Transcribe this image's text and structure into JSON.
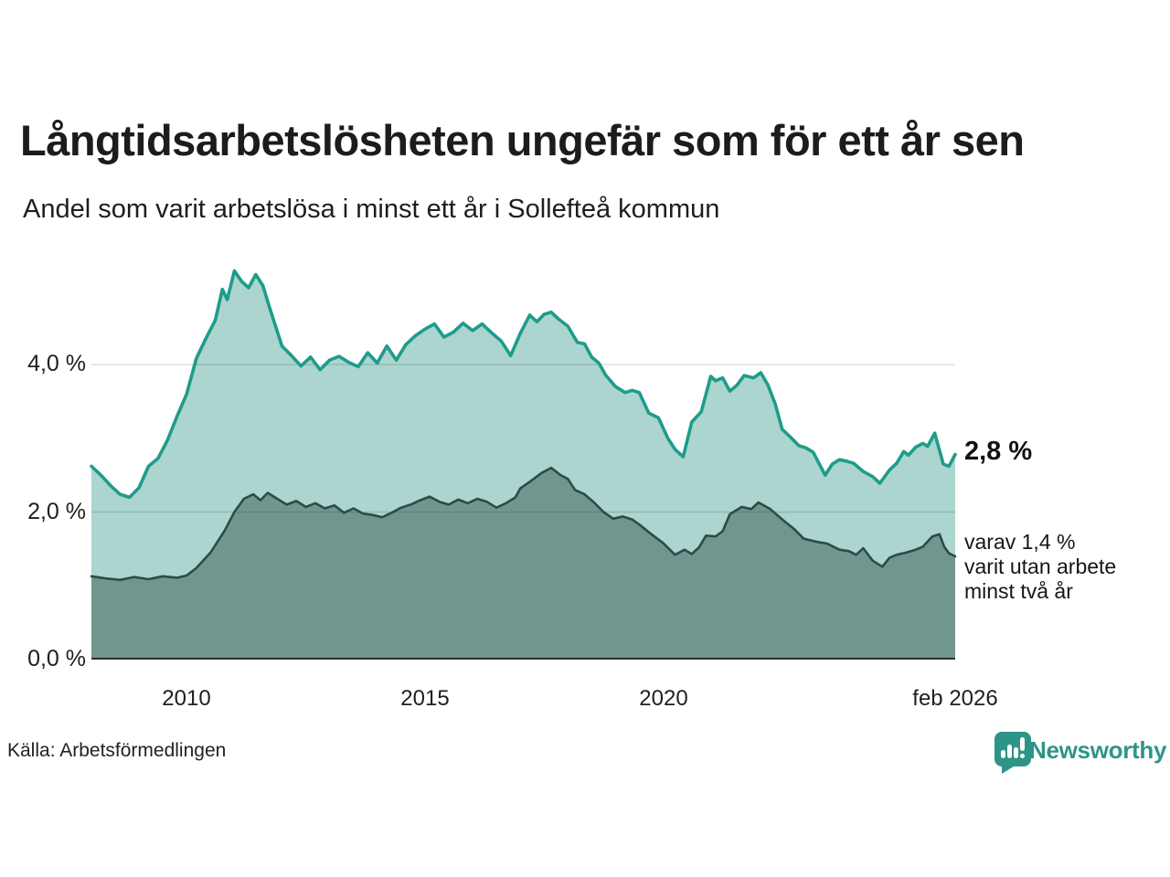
{
  "title": "Långtidsarbetslösheten ungefär som för ett år sen",
  "subtitle": "Andel som varit arbetslösa i minst ett år i Sollefteå kommun",
  "source": "Källa: Arbetsförmedlingen",
  "branding": {
    "name": "Newsworthy",
    "color": "#2e9488"
  },
  "annotations": {
    "latest_total": "2,8 %",
    "subset_note": "varav 1,4 %\nvarit utan arbete\nminst två år"
  },
  "chart_data": {
    "type": "area",
    "title": "Långtidsarbetslösheten ungefär som för ett år sen",
    "xlabel": "",
    "ylabel": "",
    "grid": true,
    "x_domain": [
      2008.0,
      2026.13
    ],
    "y_domain": [
      0,
      5.474
    ],
    "y_axis": {
      "tick_values": [
        4,
        2,
        0
      ],
      "tick_labels": [
        "4,0 %",
        "2,0 %",
        "0,0 %"
      ],
      "grid_values": [
        4,
        2
      ]
    },
    "x_axis": {
      "tick_values": [
        2010,
        2015,
        2020,
        2026.13
      ],
      "tick_labels": [
        "2010",
        "2015",
        "2020",
        "feb 2026"
      ]
    },
    "series": [
      {
        "name": "Arbetslösa minst ett år",
        "end_label": "2,8 %",
        "end_value": 2.8,
        "stroke": "#1e9c8b",
        "fill": "#abd5ce",
        "stroke_width": 3.6,
        "points": [
          [
            2008.0,
            2.62
          ],
          [
            2008.2,
            2.5
          ],
          [
            2008.4,
            2.36
          ],
          [
            2008.6,
            2.24
          ],
          [
            2008.8,
            2.2
          ],
          [
            2009.0,
            2.33
          ],
          [
            2009.2,
            2.62
          ],
          [
            2009.4,
            2.73
          ],
          [
            2009.6,
            2.98
          ],
          [
            2009.8,
            3.3
          ],
          [
            2010.0,
            3.6
          ],
          [
            2010.2,
            4.08
          ],
          [
            2010.4,
            4.35
          ],
          [
            2010.6,
            4.6
          ],
          [
            2010.75,
            5.02
          ],
          [
            2010.85,
            4.88
          ],
          [
            2011.0,
            5.27
          ],
          [
            2011.15,
            5.13
          ],
          [
            2011.3,
            5.04
          ],
          [
            2011.45,
            5.22
          ],
          [
            2011.6,
            5.07
          ],
          [
            2011.75,
            4.75
          ],
          [
            2011.9,
            4.45
          ],
          [
            2012.0,
            4.25
          ],
          [
            2012.2,
            4.12
          ],
          [
            2012.4,
            3.98
          ],
          [
            2012.6,
            4.1
          ],
          [
            2012.8,
            3.93
          ],
          [
            2013.0,
            4.06
          ],
          [
            2013.2,
            4.11
          ],
          [
            2013.4,
            4.03
          ],
          [
            2013.6,
            3.97
          ],
          [
            2013.8,
            4.16
          ],
          [
            2014.0,
            4.02
          ],
          [
            2014.2,
            4.25
          ],
          [
            2014.4,
            4.06
          ],
          [
            2014.6,
            4.27
          ],
          [
            2014.8,
            4.39
          ],
          [
            2015.0,
            4.48
          ],
          [
            2015.2,
            4.55
          ],
          [
            2015.4,
            4.37
          ],
          [
            2015.6,
            4.44
          ],
          [
            2015.8,
            4.56
          ],
          [
            2016.0,
            4.46
          ],
          [
            2016.2,
            4.55
          ],
          [
            2016.4,
            4.43
          ],
          [
            2016.6,
            4.32
          ],
          [
            2016.8,
            4.12
          ],
          [
            2017.0,
            4.42
          ],
          [
            2017.2,
            4.67
          ],
          [
            2017.35,
            4.58
          ],
          [
            2017.5,
            4.68
          ],
          [
            2017.65,
            4.71
          ],
          [
            2017.8,
            4.62
          ],
          [
            2018.0,
            4.52
          ],
          [
            2018.2,
            4.3
          ],
          [
            2018.35,
            4.28
          ],
          [
            2018.5,
            4.1
          ],
          [
            2018.65,
            4.02
          ],
          [
            2018.8,
            3.85
          ],
          [
            2019.0,
            3.7
          ],
          [
            2019.2,
            3.62
          ],
          [
            2019.35,
            3.65
          ],
          [
            2019.5,
            3.62
          ],
          [
            2019.7,
            3.34
          ],
          [
            2019.9,
            3.28
          ],
          [
            2020.1,
            3.0
          ],
          [
            2020.25,
            2.85
          ],
          [
            2020.42,
            2.75
          ],
          [
            2020.6,
            3.22
          ],
          [
            2020.8,
            3.36
          ],
          [
            2021.0,
            3.84
          ],
          [
            2021.1,
            3.78
          ],
          [
            2021.25,
            3.82
          ],
          [
            2021.4,
            3.64
          ],
          [
            2021.55,
            3.72
          ],
          [
            2021.7,
            3.85
          ],
          [
            2021.9,
            3.82
          ],
          [
            2022.05,
            3.89
          ],
          [
            2022.2,
            3.72
          ],
          [
            2022.35,
            3.47
          ],
          [
            2022.5,
            3.12
          ],
          [
            2022.65,
            3.03
          ],
          [
            2022.85,
            2.9
          ],
          [
            2023.0,
            2.87
          ],
          [
            2023.15,
            2.81
          ],
          [
            2023.4,
            2.5
          ],
          [
            2023.55,
            2.65
          ],
          [
            2023.7,
            2.71
          ],
          [
            2023.85,
            2.69
          ],
          [
            2024.0,
            2.66
          ],
          [
            2024.2,
            2.55
          ],
          [
            2024.4,
            2.48
          ],
          [
            2024.55,
            2.39
          ],
          [
            2024.75,
            2.57
          ],
          [
            2024.9,
            2.66
          ],
          [
            2025.05,
            2.82
          ],
          [
            2025.15,
            2.77
          ],
          [
            2025.3,
            2.88
          ],
          [
            2025.45,
            2.93
          ],
          [
            2025.55,
            2.89
          ],
          [
            2025.7,
            3.07
          ],
          [
            2025.88,
            2.65
          ],
          [
            2026.0,
            2.62
          ],
          [
            2026.13,
            2.78
          ]
        ]
      },
      {
        "name": "Arbetslösa minst två år",
        "end_label": "varav 1,4 % varit utan arbete minst två år",
        "end_value": 1.4,
        "stroke": "#2d4b47",
        "fill": "#70978f",
        "stroke_width": 2.6,
        "points": [
          [
            2008.0,
            1.13
          ],
          [
            2008.3,
            1.1
          ],
          [
            2008.6,
            1.08
          ],
          [
            2008.9,
            1.12
          ],
          [
            2009.2,
            1.09
          ],
          [
            2009.5,
            1.13
          ],
          [
            2009.8,
            1.11
          ],
          [
            2010.0,
            1.14
          ],
          [
            2010.2,
            1.24
          ],
          [
            2010.5,
            1.45
          ],
          [
            2010.8,
            1.75
          ],
          [
            2011.0,
            2.0
          ],
          [
            2011.2,
            2.18
          ],
          [
            2011.4,
            2.24
          ],
          [
            2011.55,
            2.16
          ],
          [
            2011.7,
            2.26
          ],
          [
            2011.9,
            2.18
          ],
          [
            2012.1,
            2.1
          ],
          [
            2012.3,
            2.15
          ],
          [
            2012.5,
            2.07
          ],
          [
            2012.7,
            2.12
          ],
          [
            2012.9,
            2.05
          ],
          [
            2013.1,
            2.09
          ],
          [
            2013.3,
            1.99
          ],
          [
            2013.5,
            2.05
          ],
          [
            2013.7,
            1.98
          ],
          [
            2013.9,
            1.96
          ],
          [
            2014.1,
            1.93
          ],
          [
            2014.3,
            1.99
          ],
          [
            2014.5,
            2.06
          ],
          [
            2014.7,
            2.1
          ],
          [
            2014.9,
            2.16
          ],
          [
            2015.1,
            2.21
          ],
          [
            2015.3,
            2.14
          ],
          [
            2015.5,
            2.1
          ],
          [
            2015.7,
            2.17
          ],
          [
            2015.9,
            2.12
          ],
          [
            2016.1,
            2.18
          ],
          [
            2016.3,
            2.14
          ],
          [
            2016.5,
            2.06
          ],
          [
            2016.7,
            2.12
          ],
          [
            2016.9,
            2.2
          ],
          [
            2017.0,
            2.32
          ],
          [
            2017.2,
            2.41
          ],
          [
            2017.45,
            2.53
          ],
          [
            2017.65,
            2.6
          ],
          [
            2017.85,
            2.5
          ],
          [
            2018.0,
            2.45
          ],
          [
            2018.15,
            2.3
          ],
          [
            2018.35,
            2.24
          ],
          [
            2018.55,
            2.13
          ],
          [
            2018.75,
            2.0
          ],
          [
            2018.95,
            1.91
          ],
          [
            2019.15,
            1.94
          ],
          [
            2019.35,
            1.9
          ],
          [
            2019.5,
            1.83
          ],
          [
            2019.75,
            1.7
          ],
          [
            2020.0,
            1.58
          ],
          [
            2020.25,
            1.42
          ],
          [
            2020.45,
            1.49
          ],
          [
            2020.6,
            1.43
          ],
          [
            2020.75,
            1.52
          ],
          [
            2020.9,
            1.68
          ],
          [
            2021.1,
            1.67
          ],
          [
            2021.25,
            1.74
          ],
          [
            2021.4,
            1.97
          ],
          [
            2021.65,
            2.07
          ],
          [
            2021.85,
            2.04
          ],
          [
            2022.0,
            2.13
          ],
          [
            2022.25,
            2.04
          ],
          [
            2022.5,
            1.9
          ],
          [
            2022.75,
            1.77
          ],
          [
            2022.95,
            1.64
          ],
          [
            2023.2,
            1.6
          ],
          [
            2023.45,
            1.57
          ],
          [
            2023.7,
            1.49
          ],
          [
            2023.9,
            1.47
          ],
          [
            2024.05,
            1.42
          ],
          [
            2024.2,
            1.51
          ],
          [
            2024.4,
            1.34
          ],
          [
            2024.6,
            1.26
          ],
          [
            2024.75,
            1.38
          ],
          [
            2024.9,
            1.42
          ],
          [
            2025.1,
            1.45
          ],
          [
            2025.3,
            1.49
          ],
          [
            2025.45,
            1.53
          ],
          [
            2025.65,
            1.67
          ],
          [
            2025.8,
            1.7
          ],
          [
            2025.9,
            1.53
          ],
          [
            2026.0,
            1.44
          ],
          [
            2026.13,
            1.4
          ]
        ]
      }
    ],
    "style": {
      "gridline_color": "#d8d8d8",
      "axis_color": "#2e2e2e",
      "text_color": "#1b1b1b"
    }
  }
}
